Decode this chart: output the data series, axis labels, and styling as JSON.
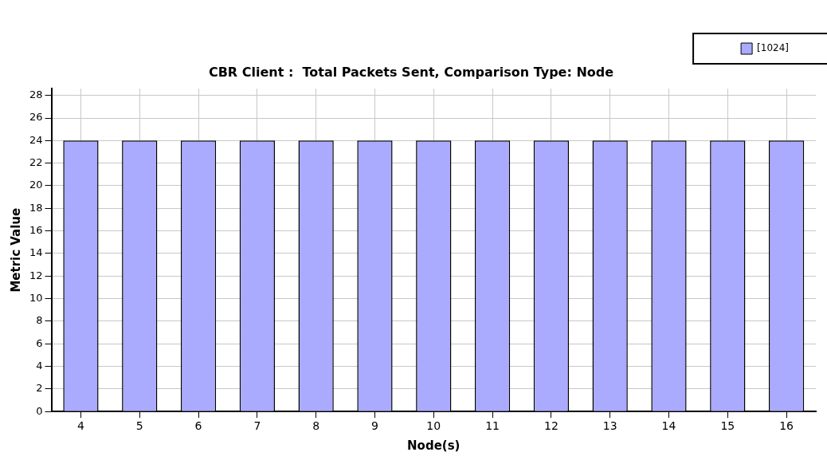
{
  "chart_data": {
    "type": "bar",
    "title": "CBR Client :  Total Packets Sent, Comparison Type: Node",
    "xlabel": "Node(s)",
    "ylabel": "Metric Value",
    "categories": [
      "4",
      "5",
      "6",
      "7",
      "8",
      "9",
      "10",
      "11",
      "12",
      "13",
      "14",
      "15",
      "16"
    ],
    "series": [
      {
        "name": "[1024]",
        "color": "#aaaaff",
        "values": [
          24,
          24,
          24,
          24,
          24,
          24,
          24,
          24,
          24,
          24,
          24,
          24,
          24
        ]
      }
    ],
    "ylim": [
      0,
      28.6
    ],
    "yticks": [
      0,
      2,
      4,
      6,
      8,
      10,
      12,
      14,
      16,
      18,
      20,
      22,
      24,
      26,
      28
    ],
    "grid": true,
    "legend": "top right"
  }
}
